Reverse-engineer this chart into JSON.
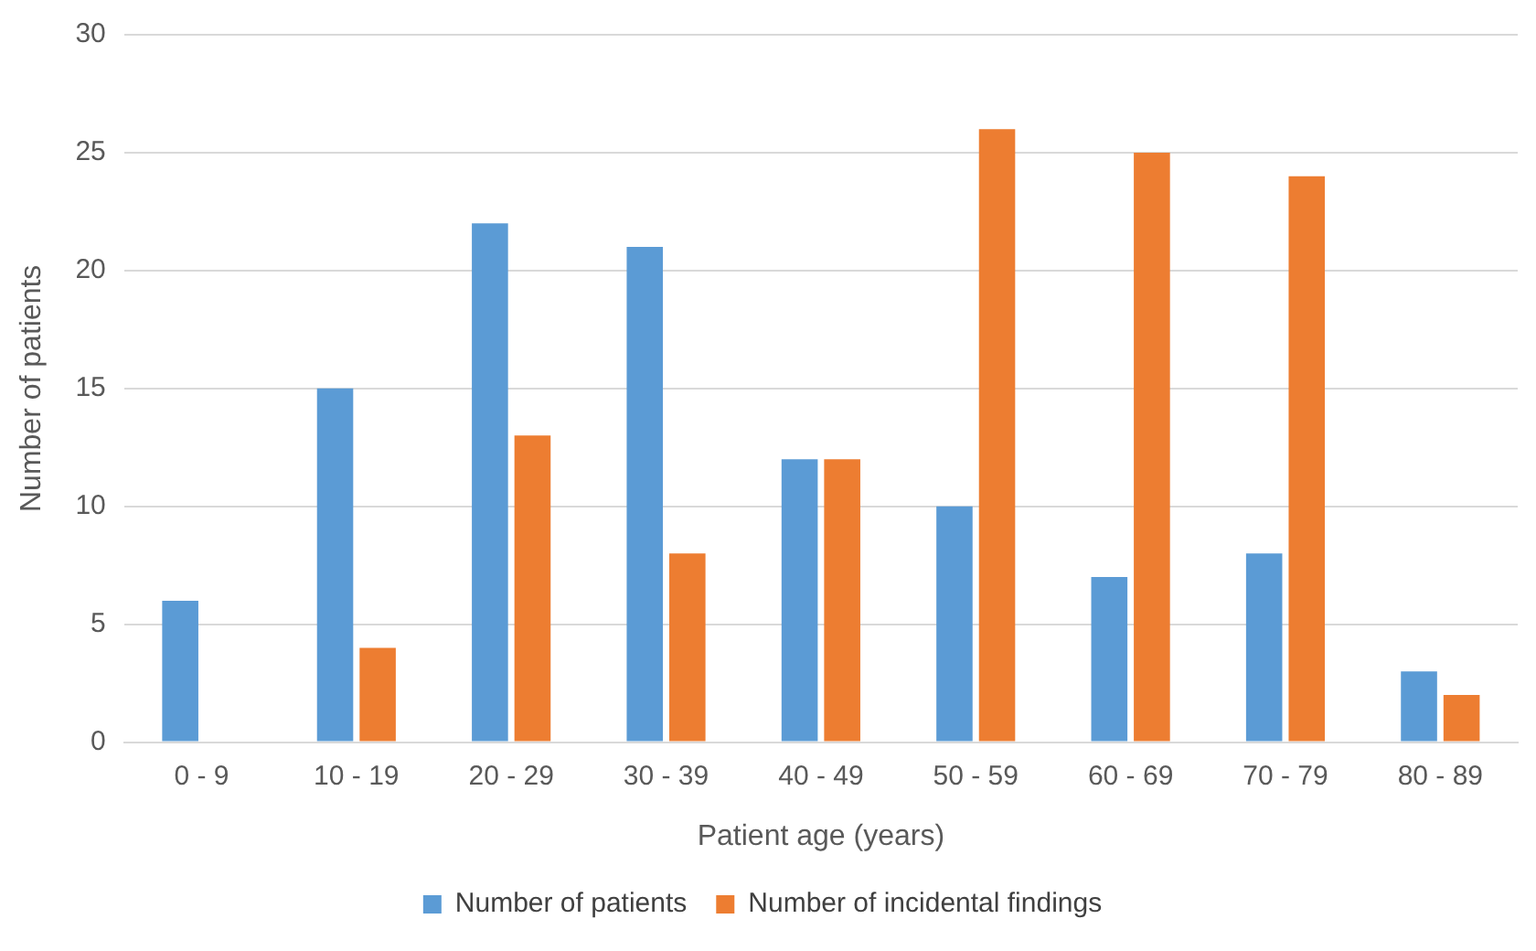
{
  "chart_data": {
    "type": "bar",
    "xlabel": "Patient age (years)",
    "ylabel": "Number of patients",
    "categories": [
      "0 - 9",
      "10 - 19",
      "20 - 29",
      "30 - 39",
      "40 - 49",
      "50 - 59",
      "60 - 69",
      "70 - 79",
      "80 - 89"
    ],
    "series": [
      {
        "name": "Number of patients",
        "color": "#5b9bd5",
        "values": [
          6,
          15,
          22,
          21,
          12,
          10,
          7,
          8,
          3
        ]
      },
      {
        "name": "Number of incidental findings",
        "color": "#ed7d31",
        "values": [
          0,
          4,
          13,
          8,
          12,
          26,
          25,
          24,
          2
        ]
      }
    ],
    "ylim": [
      0,
      30
    ],
    "yticks": [
      0,
      5,
      10,
      15,
      20,
      25,
      30
    ],
    "grid": "y",
    "legend": "bottom"
  }
}
